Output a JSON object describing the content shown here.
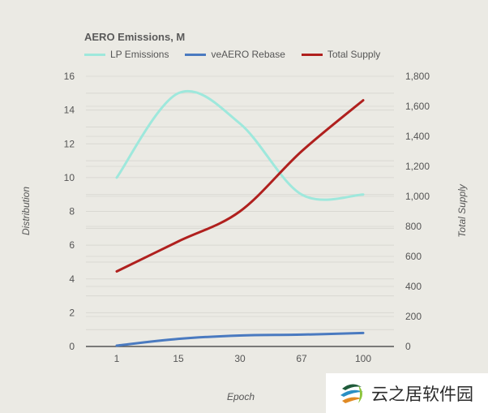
{
  "chart_data": {
    "type": "line",
    "title": "AERO Emissions, M",
    "xlabel": "Epoch",
    "ylabel": "Distribution",
    "y2label": "Total Supply",
    "categories": [
      "1",
      "15",
      "30",
      "67",
      "100"
    ],
    "ylim": [
      0,
      16
    ],
    "y2lim": [
      0,
      1800
    ],
    "yticks": [
      "0",
      "2",
      "4",
      "6",
      "8",
      "10",
      "12",
      "14",
      "16"
    ],
    "y2ticks": [
      "0",
      "200",
      "400",
      "600",
      "800",
      "1,000",
      "1,200",
      "1,400",
      "1,600",
      "1,800"
    ],
    "grid": true,
    "legend_position": "top",
    "series": [
      {
        "name": "LP Emissions",
        "axis": "left",
        "color": "#9ee8dc",
        "values": [
          10,
          15,
          13.2,
          9,
          9
        ]
      },
      {
        "name": "veAERO Rebase",
        "axis": "left",
        "color": "#4a7ac0",
        "values": [
          0.05,
          0.45,
          0.65,
          0.7,
          0.8
        ]
      },
      {
        "name": "Total Supply",
        "axis": "right",
        "color": "#b0201e",
        "values": [
          500,
          700,
          900,
          1300,
          1640
        ]
      }
    ]
  },
  "watermark": {
    "text": "云之居软件园"
  }
}
